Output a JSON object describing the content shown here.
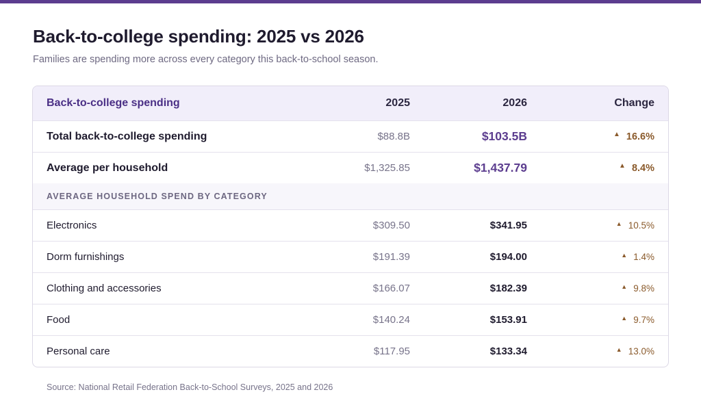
{
  "title": "Back-to-college spending: 2025 vs 2026",
  "subtitle": "Families are spending more across every category this back-to-school season.",
  "table": {
    "headers": {
      "label": "Back-to-college spending",
      "y2025": "2025",
      "y2026": "2026",
      "change": "Change"
    },
    "summary_rows": [
      {
        "label": "Total back-to-college spending",
        "y2025": "$88.8B",
        "y2026": "$103.5B",
        "change": "16.6%"
      },
      {
        "label": "Average per household",
        "y2025": "$1,325.85",
        "y2026": "$1,437.79",
        "change": "8.4%"
      }
    ],
    "section_label": "AVERAGE HOUSEHOLD SPEND BY CATEGORY",
    "category_rows": [
      {
        "label": "Electronics",
        "y2025": "$309.50",
        "y2026": "$341.95",
        "change": "10.5%"
      },
      {
        "label": "Dorm furnishings",
        "y2025": "$191.39",
        "y2026": "$194.00",
        "change": "1.4%"
      },
      {
        "label": "Clothing and accessories",
        "y2025": "$166.07",
        "y2026": "$182.39",
        "change": "9.8%"
      },
      {
        "label": "Food",
        "y2025": "$140.24",
        "y2026": "$153.91",
        "change": "9.7%"
      },
      {
        "label": "Personal care",
        "y2025": "$117.95",
        "y2026": "$133.34",
        "change": "13.0%"
      }
    ],
    "change_icon": "up-triangle-icon",
    "change_glyph": "▲"
  },
  "source": "Source: National Retail Federation Back-to-School Surveys, 2025 and 2026",
  "colors": {
    "accent": "#5c3d8f",
    "increase": "#8a5a2b",
    "header_bg": "#f1eefa"
  }
}
